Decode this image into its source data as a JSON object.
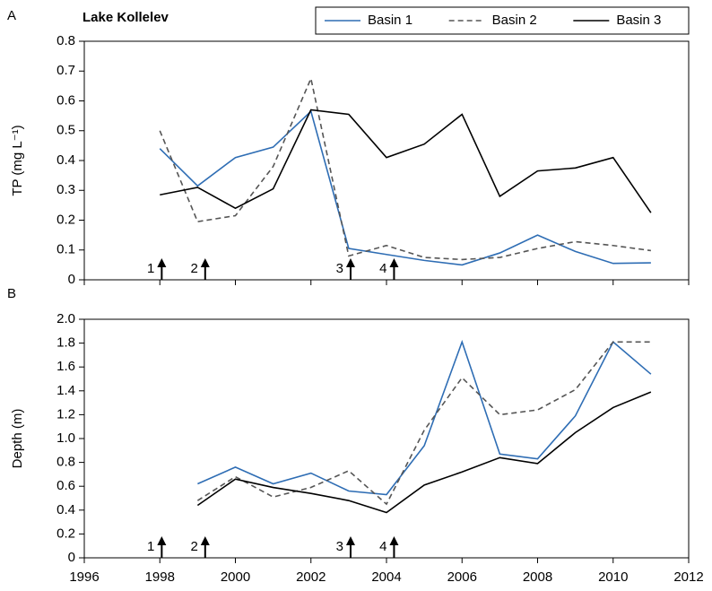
{
  "chart_data": [
    {
      "type": "line",
      "panel": "A",
      "title": "Lake Kollelev",
      "ylabel": "TP (mg L⁻¹)",
      "x": [
        1998,
        1999,
        2000,
        2001,
        2002,
        2003,
        2004,
        2005,
        2006,
        2007,
        2008,
        2009,
        2010,
        2011
      ],
      "series": [
        {
          "name": "Basin 1",
          "color": "#2e6db4",
          "style": "solid",
          "values": [
            0.44,
            0.315,
            0.41,
            0.445,
            0.565,
            0.105,
            0.085,
            0.065,
            0.05,
            0.09,
            0.15,
            0.095,
            0.055,
            0.057
          ]
        },
        {
          "name": "Basin 2",
          "color": "#555555",
          "style": "dashed",
          "values": [
            0.5,
            0.195,
            0.215,
            0.38,
            0.675,
            0.08,
            0.115,
            0.075,
            0.068,
            0.075,
            0.105,
            0.128,
            0.115,
            0.098
          ]
        },
        {
          "name": "Basin 3",
          "color": "#000000",
          "style": "solid",
          "values": [
            0.285,
            0.31,
            0.24,
            0.305,
            0.57,
            0.555,
            0.41,
            0.455,
            0.555,
            0.28,
            0.365,
            0.375,
            0.41,
            0.225
          ]
        }
      ],
      "xlim": [
        1996,
        2012
      ],
      "xticks": [
        1996,
        1998,
        2000,
        2002,
        2004,
        2006,
        2008,
        2010,
        2012
      ],
      "xticklabels": false,
      "ylim": [
        0,
        0.8
      ],
      "yticks": [
        0,
        0.1,
        0.2,
        0.3,
        0.4,
        0.5,
        0.6,
        0.7,
        0.8
      ],
      "legend": "upper right",
      "annotations": [
        {
          "text": "1",
          "x": 1998.05
        },
        {
          "text": "2",
          "x": 1999.2
        },
        {
          "text": "3",
          "x": 2003.05
        },
        {
          "text": "4",
          "x": 2004.2
        }
      ]
    },
    {
      "type": "line",
      "panel": "B",
      "ylabel": "Depth (m)",
      "x": [
        1999,
        2000,
        2001,
        2002,
        2003,
        2004,
        2005,
        2006,
        2007,
        2008,
        2009,
        2010,
        2011
      ],
      "series": [
        {
          "name": "Basin 1",
          "color": "#2e6db4",
          "style": "solid",
          "values": [
            0.62,
            0.76,
            0.62,
            0.71,
            0.56,
            0.53,
            0.94,
            1.81,
            0.87,
            0.83,
            1.19,
            1.81,
            1.54
          ]
        },
        {
          "name": "Basin 2",
          "color": "#555555",
          "style": "dashed",
          "values": [
            0.48,
            0.68,
            0.51,
            0.59,
            0.73,
            0.45,
            1.07,
            1.51,
            1.2,
            1.24,
            1.41,
            1.81,
            1.81
          ]
        },
        {
          "name": "Basin 3",
          "color": "#000000",
          "style": "solid",
          "values": [
            0.44,
            0.66,
            0.59,
            0.54,
            0.48,
            0.38,
            0.61,
            0.72,
            0.84,
            0.79,
            1.05,
            1.26,
            1.39
          ]
        }
      ],
      "xlim": [
        1996,
        2012
      ],
      "xticks": [
        1996,
        1998,
        2000,
        2002,
        2004,
        2006,
        2008,
        2010,
        2012
      ],
      "xticklabels": true,
      "ylim": [
        0,
        2
      ],
      "yticks": [
        0,
        0.2,
        0.4,
        0.6,
        0.8,
        {
          "value": 1,
          "label": "1.0"
        },
        1.2,
        1.4,
        1.6,
        1.8,
        {
          "value": 2,
          "label": "2.0"
        }
      ],
      "annotations": [
        {
          "text": "1",
          "x": 1998.05
        },
        {
          "text": "2",
          "x": 1999.2
        },
        {
          "text": "3",
          "x": 2003.05
        },
        {
          "text": "4",
          "x": 2004.2
        }
      ]
    }
  ]
}
